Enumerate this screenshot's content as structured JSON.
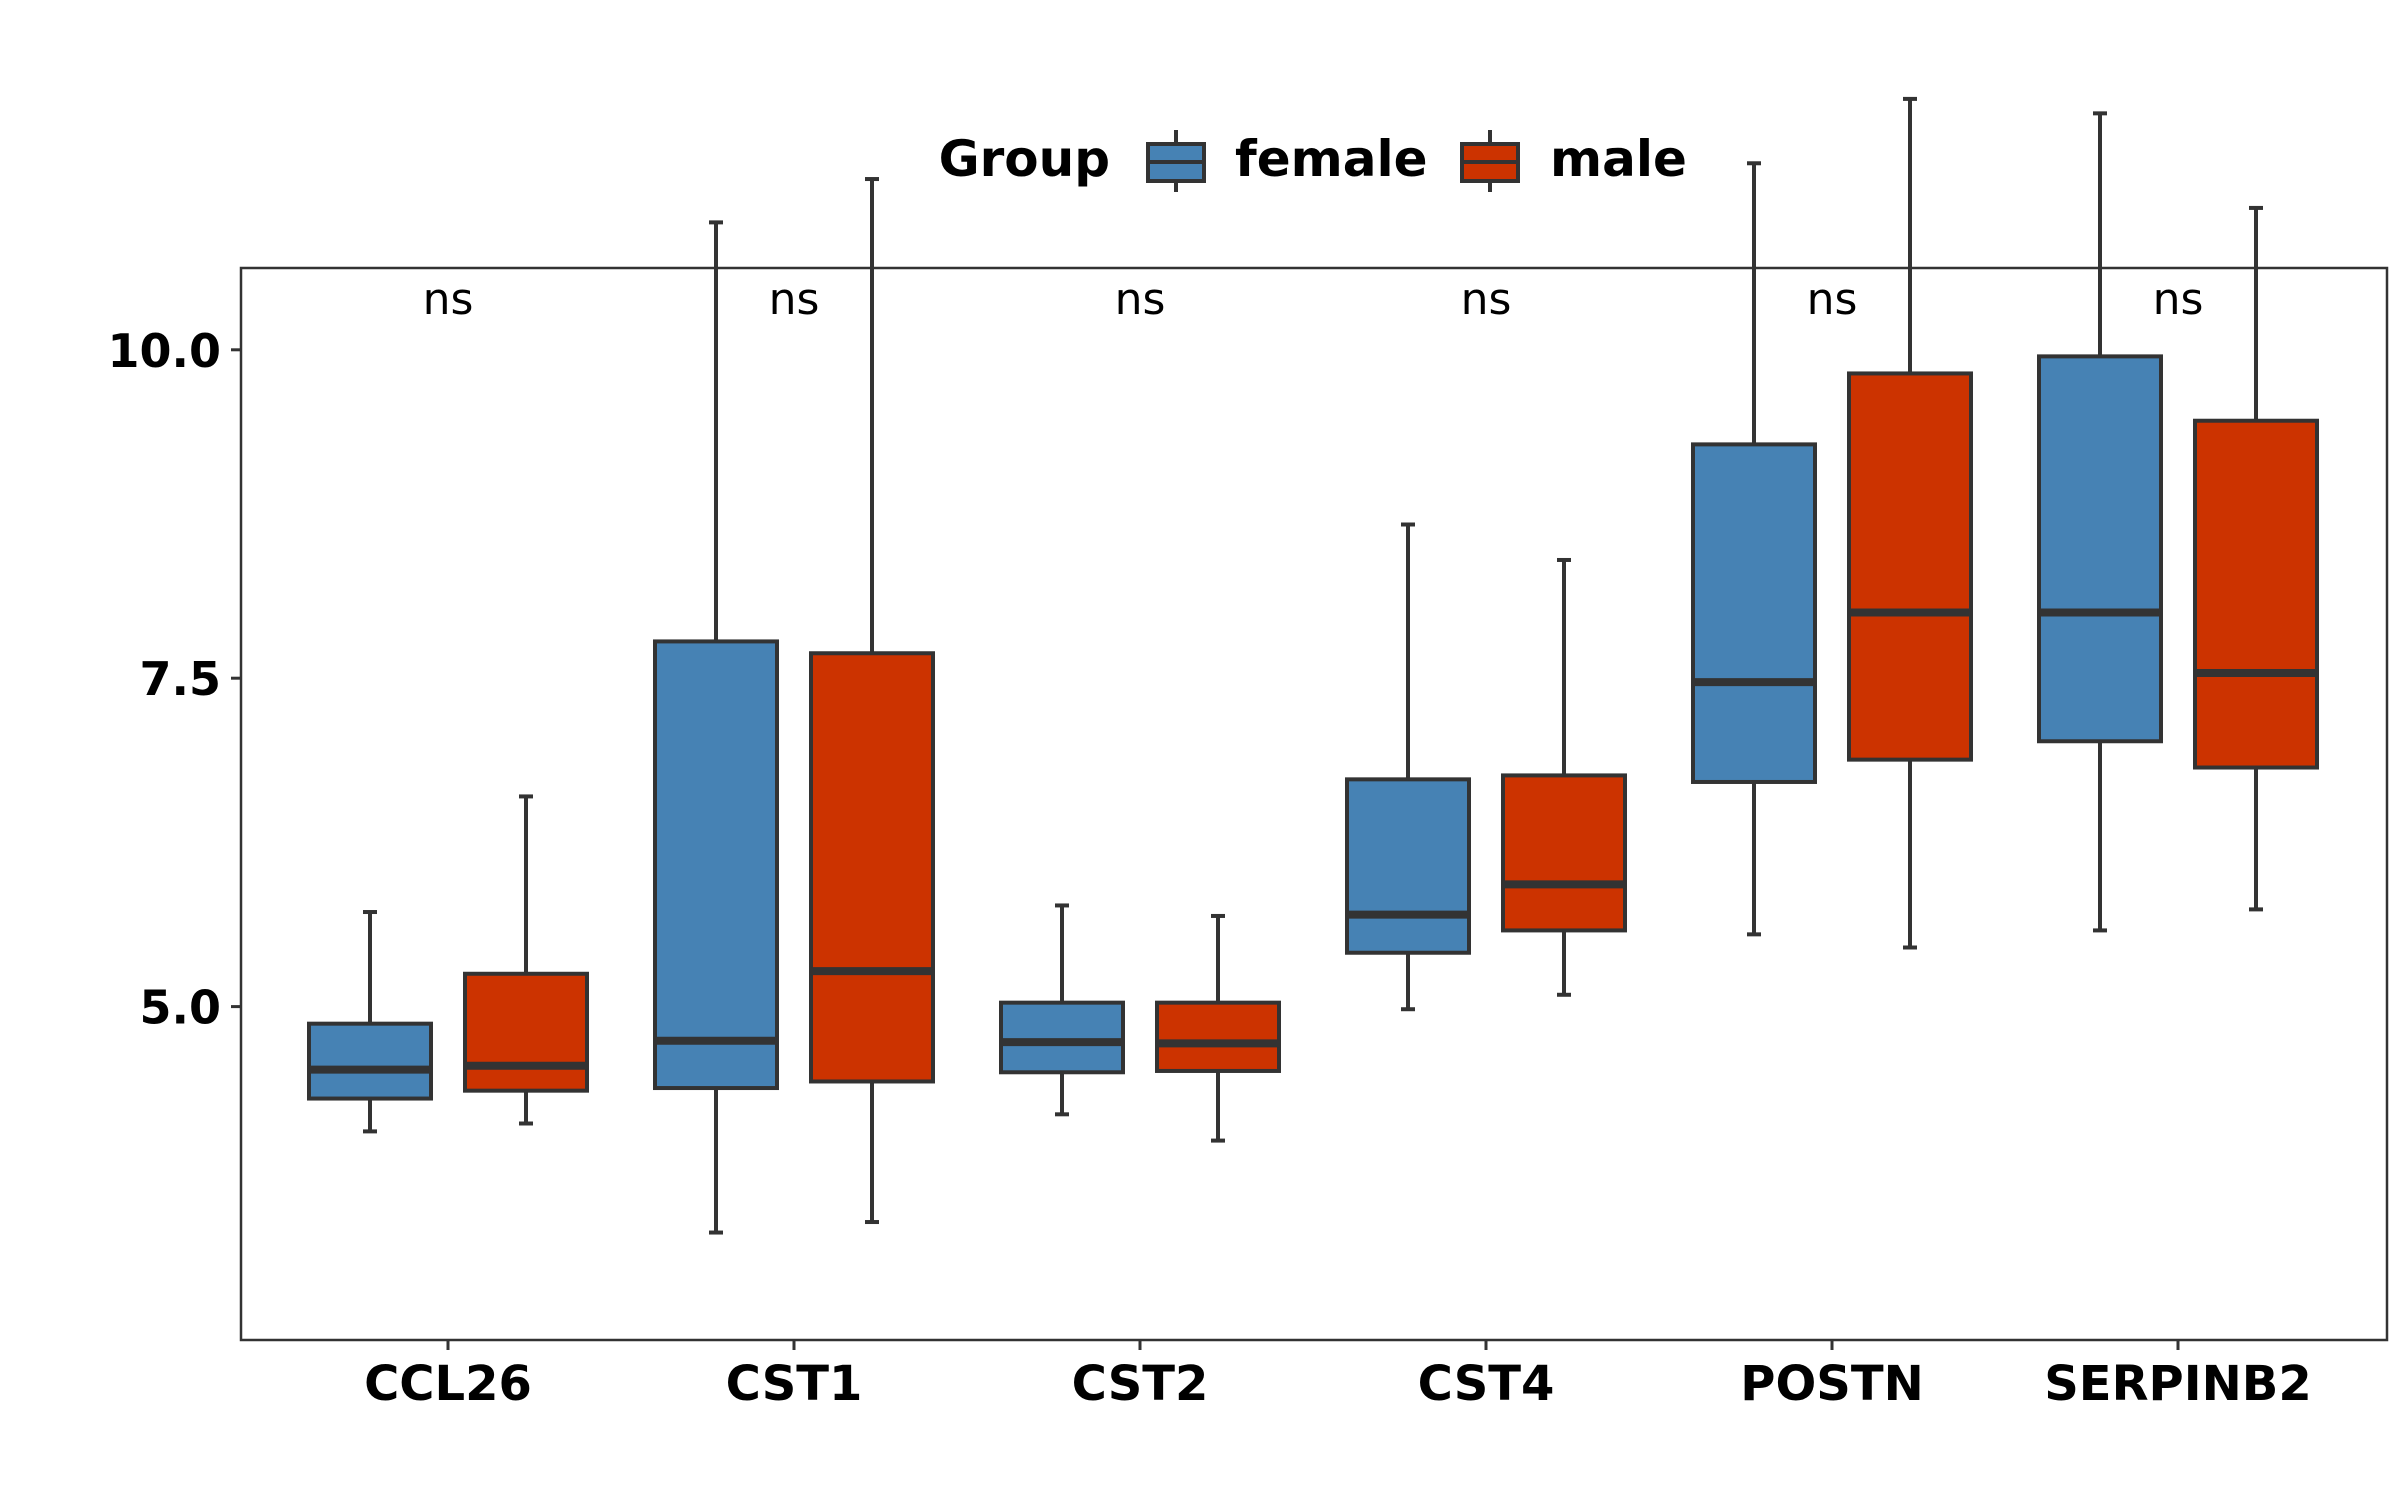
{
  "legend": {
    "title": "Group",
    "items": [
      {
        "label": "female",
        "color": "#4682B4"
      },
      {
        "label": "male",
        "color": "#CC3300"
      }
    ]
  },
  "chart_data": {
    "type": "boxplot",
    "categories": [
      "CCL26",
      "CST1",
      "CST2",
      "CST4",
      "POSTN",
      "SERPINB2"
    ],
    "y_ticks": [
      "5.0",
      "7.5",
      "10.0"
    ],
    "ylim": [
      2.2,
      12.4
    ],
    "legend_position": "top",
    "grid": false,
    "significance": [
      "ns",
      "ns",
      "ns",
      "ns",
      "ns",
      "ns"
    ],
    "series": [
      {
        "name": "female",
        "color": "#4682B4",
        "boxes": [
          {
            "min": 4.05,
            "q1": 4.3,
            "median": 4.52,
            "q3": 4.87,
            "max": 5.72
          },
          {
            "min": 3.28,
            "q1": 4.38,
            "median": 4.74,
            "q3": 7.78,
            "max": 10.97
          },
          {
            "min": 4.18,
            "q1": 4.5,
            "median": 4.73,
            "q3": 5.03,
            "max": 5.77
          },
          {
            "min": 4.98,
            "q1": 5.41,
            "median": 5.7,
            "q3": 6.73,
            "max": 8.67
          },
          {
            "min": 5.55,
            "q1": 6.71,
            "median": 7.47,
            "q3": 9.28,
            "max": 11.42
          },
          {
            "min": 5.58,
            "q1": 7.02,
            "median": 8.0,
            "q3": 9.95,
            "max": 11.8
          }
        ]
      },
      {
        "name": "male",
        "color": "#CC3300",
        "boxes": [
          {
            "min": 4.11,
            "q1": 4.36,
            "median": 4.55,
            "q3": 5.25,
            "max": 6.6
          },
          {
            "min": 3.36,
            "q1": 4.43,
            "median": 5.27,
            "q3": 7.69,
            "max": 11.3
          },
          {
            "min": 3.98,
            "q1": 4.51,
            "median": 4.72,
            "q3": 5.03,
            "max": 5.69
          },
          {
            "min": 5.09,
            "q1": 5.58,
            "median": 5.93,
            "q3": 6.76,
            "max": 8.4
          },
          {
            "min": 5.45,
            "q1": 6.88,
            "median": 8.0,
            "q3": 9.82,
            "max": 11.91
          },
          {
            "min": 5.74,
            "q1": 6.82,
            "median": 7.54,
            "q3": 9.46,
            "max": 11.08
          }
        ]
      }
    ]
  }
}
